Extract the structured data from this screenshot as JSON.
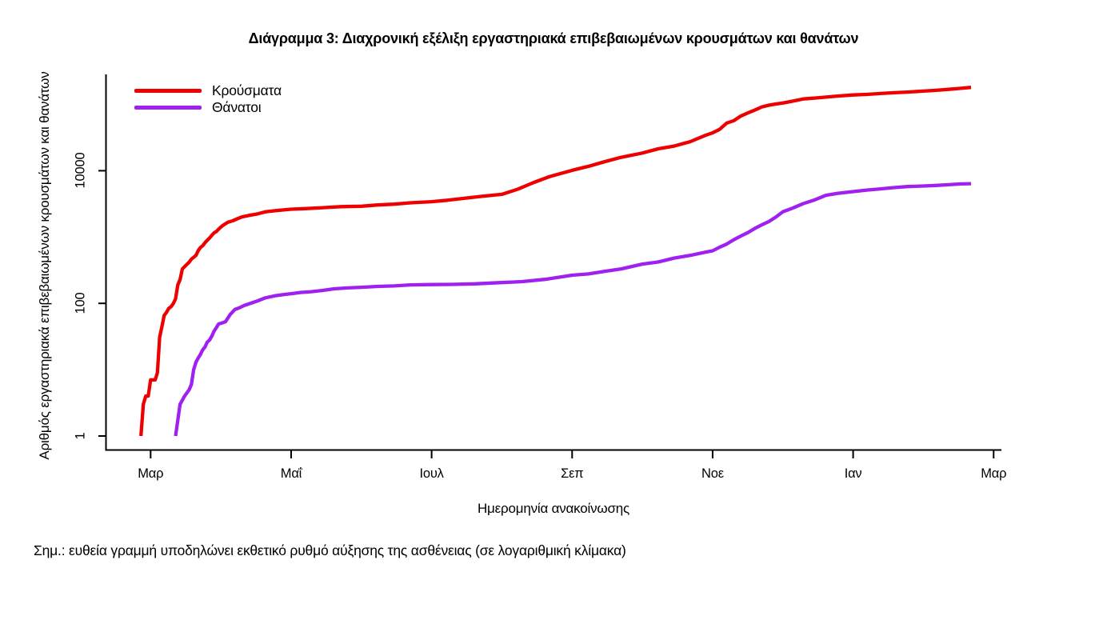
{
  "chart_data": {
    "type": "line",
    "title": "Διάγραμμα 3: Διαχρονική εξέλιξη εργαστηριακά επιβεβαιωμένων κρουσμάτων και θανάτων",
    "xlabel": "Ημερομηνία ανακοίνωσης",
    "ylabel": "Αριθμός εργαστηριακά επιβεβαιωμένων κρουσμάτων και θανάτων",
    "note": "Σημ.: ευθεία γραμμή υποδηλώνει εκθετικό ρυθμό αύξησης της ασθένειας (σε λογαριθμική κλίμακα)",
    "y_scale": "log10",
    "y_ticks": [
      {
        "label": "1",
        "value": 1
      },
      {
        "label": "100",
        "value": 100
      },
      {
        "label": "10000",
        "value": 10000
      }
    ],
    "x_ticks": [
      {
        "label": "Μαρ",
        "month_index": 0
      },
      {
        "label": "Μαΐ",
        "month_index": 2
      },
      {
        "label": "Ιουλ",
        "month_index": 4
      },
      {
        "label": "Σεπ",
        "month_index": 6
      },
      {
        "label": "Νοε",
        "month_index": 8
      },
      {
        "label": "Ιαν",
        "month_index": 10
      },
      {
        "label": "Μαρ",
        "month_index": 12
      }
    ],
    "x_range": [
      "2020-02-26",
      "2021-02-20"
    ],
    "legend_position": "top-left",
    "colors": {
      "cases": "#ee0000",
      "deaths": "#a020f0",
      "axis": "#000000"
    },
    "legend": [
      {
        "name": "Κρούσματα",
        "color": "#ee0000"
      },
      {
        "name": "Θάνατοι",
        "color": "#a020f0"
      }
    ],
    "series": [
      {
        "name": "Κρούσματα",
        "color": "#ee0000",
        "points": [
          [
            "2020-02-26",
            1
          ],
          [
            "2020-02-27",
            3
          ],
          [
            "2020-02-28",
            4
          ],
          [
            "2020-02-29",
            4
          ],
          [
            "2020-03-01",
            7
          ],
          [
            "2020-03-03",
            7
          ],
          [
            "2020-03-04",
            9
          ],
          [
            "2020-03-05",
            31
          ],
          [
            "2020-03-06",
            45
          ],
          [
            "2020-03-07",
            66
          ],
          [
            "2020-03-08",
            73
          ],
          [
            "2020-03-09",
            84
          ],
          [
            "2020-03-10",
            89
          ],
          [
            "2020-03-11",
            99
          ],
          [
            "2020-03-12",
            117
          ],
          [
            "2020-03-13",
            190
          ],
          [
            "2020-03-14",
            228
          ],
          [
            "2020-03-15",
            331
          ],
          [
            "2020-03-17",
            387
          ],
          [
            "2020-03-18",
            418
          ],
          [
            "2020-03-19",
            464
          ],
          [
            "2020-03-20",
            495
          ],
          [
            "2020-03-21",
            530
          ],
          [
            "2020-03-22",
            624
          ],
          [
            "2020-03-23",
            695
          ],
          [
            "2020-03-24",
            743
          ],
          [
            "2020-03-25",
            821
          ],
          [
            "2020-03-26",
            892
          ],
          [
            "2020-03-27",
            966
          ],
          [
            "2020-03-28",
            1061
          ],
          [
            "2020-03-29",
            1156
          ],
          [
            "2020-03-30",
            1212
          ],
          [
            "2020-03-31",
            1314
          ],
          [
            "2020-04-01",
            1415
          ],
          [
            "2020-04-02",
            1514
          ],
          [
            "2020-04-04",
            1673
          ],
          [
            "2020-04-06",
            1755
          ],
          [
            "2020-04-08",
            1884
          ],
          [
            "2020-04-10",
            2011
          ],
          [
            "2020-04-13",
            2114
          ],
          [
            "2020-04-16",
            2207
          ],
          [
            "2020-04-20",
            2401
          ],
          [
            "2020-04-25",
            2517
          ],
          [
            "2020-05-01",
            2626
          ],
          [
            "2020-05-07",
            2678
          ],
          [
            "2020-05-15",
            2770
          ],
          [
            "2020-05-23",
            2873
          ],
          [
            "2020-06-01",
            2917
          ],
          [
            "2020-06-08",
            3049
          ],
          [
            "2020-06-15",
            3134
          ],
          [
            "2020-06-22",
            3287
          ],
          [
            "2020-07-01",
            3409
          ],
          [
            "2020-07-08",
            3589
          ],
          [
            "2020-07-15",
            3826
          ],
          [
            "2020-07-22",
            4077
          ],
          [
            "2020-08-01",
            4401
          ],
          [
            "2020-08-08",
            5270
          ],
          [
            "2020-08-15",
            6632
          ],
          [
            "2020-08-22",
            8138
          ],
          [
            "2020-09-01",
            10134
          ],
          [
            "2020-09-08",
            11663
          ],
          [
            "2020-09-15",
            13730
          ],
          [
            "2020-09-22",
            15928
          ],
          [
            "2020-10-01",
            18475
          ],
          [
            "2020-10-08",
            21381
          ],
          [
            "2020-10-15",
            23495
          ],
          [
            "2020-10-22",
            27334
          ],
          [
            "2020-10-29",
            34299
          ],
          [
            "2020-11-01",
            37196
          ],
          [
            "2020-11-04",
            42080
          ],
          [
            "2020-11-07",
            52254
          ],
          [
            "2020-11-10",
            56698
          ],
          [
            "2020-11-13",
            66637
          ],
          [
            "2020-11-16",
            74205
          ],
          [
            "2020-11-19",
            82034
          ],
          [
            "2020-11-22",
            91619
          ],
          [
            "2020-11-25",
            97288
          ],
          [
            "2020-11-28",
            101287
          ],
          [
            "2020-12-01",
            105271
          ],
          [
            "2020-12-05",
            111537
          ],
          [
            "2020-12-10",
            120714
          ],
          [
            "2020-12-15",
            124534
          ],
          [
            "2020-12-20",
            128710
          ],
          [
            "2020-12-25",
            133324
          ],
          [
            "2021-01-01",
            138850
          ],
          [
            "2021-01-07",
            141453
          ],
          [
            "2021-01-13",
            146020
          ],
          [
            "2021-01-19",
            149807
          ],
          [
            "2021-01-25",
            153226
          ],
          [
            "2021-02-01",
            158716
          ],
          [
            "2021-02-06",
            162870
          ],
          [
            "2021-02-11",
            168627
          ],
          [
            "2021-02-16",
            174659
          ],
          [
            "2021-02-20",
            180672
          ]
        ]
      },
      {
        "name": "Θάνατοι",
        "color": "#a020f0",
        "points": [
          [
            "2020-03-12",
            1
          ],
          [
            "2020-03-14",
            3
          ],
          [
            "2020-03-16",
            4
          ],
          [
            "2020-03-18",
            5
          ],
          [
            "2020-03-19",
            6
          ],
          [
            "2020-03-20",
            10
          ],
          [
            "2020-03-21",
            13
          ],
          [
            "2020-03-22",
            15
          ],
          [
            "2020-03-23",
            17
          ],
          [
            "2020-03-24",
            20
          ],
          [
            "2020-03-25",
            22
          ],
          [
            "2020-03-26",
            26
          ],
          [
            "2020-03-27",
            28
          ],
          [
            "2020-03-28",
            32
          ],
          [
            "2020-03-29",
            38
          ],
          [
            "2020-03-30",
            43
          ],
          [
            "2020-03-31",
            49
          ],
          [
            "2020-04-01",
            50
          ],
          [
            "2020-04-03",
            53
          ],
          [
            "2020-04-05",
            68
          ],
          [
            "2020-04-07",
            81
          ],
          [
            "2020-04-09",
            86
          ],
          [
            "2020-04-11",
            93
          ],
          [
            "2020-04-14",
            101
          ],
          [
            "2020-04-17",
            110
          ],
          [
            "2020-04-20",
            121
          ],
          [
            "2020-04-24",
            130
          ],
          [
            "2020-04-28",
            136
          ],
          [
            "2020-05-01",
            140
          ],
          [
            "2020-05-05",
            146
          ],
          [
            "2020-05-10",
            150
          ],
          [
            "2020-05-15",
            157
          ],
          [
            "2020-05-20",
            166
          ],
          [
            "2020-05-26",
            171
          ],
          [
            "2020-06-01",
            175
          ],
          [
            "2020-06-08",
            180
          ],
          [
            "2020-06-15",
            183
          ],
          [
            "2020-06-22",
            190
          ],
          [
            "2020-07-01",
            192
          ],
          [
            "2020-07-10",
            193
          ],
          [
            "2020-07-20",
            197
          ],
          [
            "2020-08-01",
            206
          ],
          [
            "2020-08-10",
            213
          ],
          [
            "2020-08-20",
            230
          ],
          [
            "2020-09-01",
            266
          ],
          [
            "2020-09-08",
            278
          ],
          [
            "2020-09-15",
            305
          ],
          [
            "2020-09-22",
            331
          ],
          [
            "2020-10-01",
            391
          ],
          [
            "2020-10-08",
            420
          ],
          [
            "2020-10-15",
            482
          ],
          [
            "2020-10-22",
            528
          ],
          [
            "2020-10-29",
            593
          ],
          [
            "2020-11-01",
            620
          ],
          [
            "2020-11-04",
            702
          ],
          [
            "2020-11-07",
            784
          ],
          [
            "2020-11-10",
            909
          ],
          [
            "2020-11-13",
            1035
          ],
          [
            "2020-11-16",
            1165
          ],
          [
            "2020-11-19",
            1347
          ],
          [
            "2020-11-22",
            1527
          ],
          [
            "2020-11-25",
            1714
          ],
          [
            "2020-11-28",
            2001
          ],
          [
            "2020-12-01",
            2406
          ],
          [
            "2020-12-05",
            2706
          ],
          [
            "2020-12-10",
            3194
          ],
          [
            "2020-12-15",
            3625
          ],
          [
            "2020-12-20",
            4257
          ],
          [
            "2020-12-25",
            4553
          ],
          [
            "2021-01-01",
            4838
          ],
          [
            "2021-01-07",
            5099
          ],
          [
            "2021-01-13",
            5329
          ],
          [
            "2021-01-19",
            5570
          ],
          [
            "2021-01-25",
            5764
          ],
          [
            "2021-02-01",
            5878
          ],
          [
            "2021-02-06",
            5997
          ],
          [
            "2021-02-11",
            6152
          ],
          [
            "2021-02-16",
            6321
          ],
          [
            "2021-02-20",
            6371
          ]
        ]
      }
    ]
  }
}
